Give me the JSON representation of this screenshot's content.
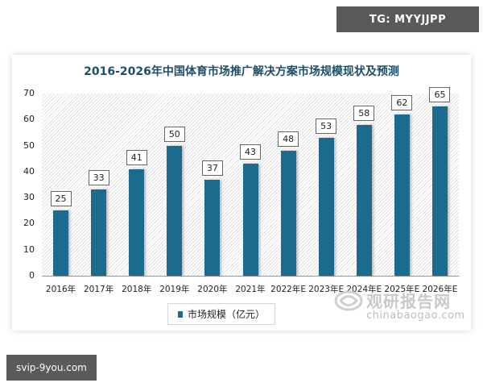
{
  "watermarks": {
    "top_right": "TG: MYYJJPP",
    "bottom_left": "svip-9you.com"
  },
  "chart_data": {
    "type": "bar",
    "title": "2016-2026年中国体育市场推广解决方案市场规模现状及预测",
    "categories": [
      "2016年",
      "2017年",
      "2018年",
      "2019年",
      "2020年",
      "2021年",
      "2022年E",
      "2023年E",
      "2024年E",
      "2025年E",
      "2026年E"
    ],
    "series": [
      {
        "name": "市场规模（亿元）",
        "values": [
          25,
          33,
          41,
          50,
          37,
          43,
          48,
          53,
          58,
          62,
          65
        ],
        "color": "#1c6a8c"
      }
    ],
    "xlabel": "",
    "ylabel": "",
    "ylim": [
      0,
      70
    ],
    "yticks": [
      0,
      10,
      20,
      30,
      40,
      50,
      60,
      70
    ],
    "grid": false,
    "legend_position": "bottom",
    "data_labels": true
  },
  "legend": {
    "label": "市场规模（亿元）"
  },
  "brand": {
    "cn": "观研报告网",
    "en": "chinabaogao.com"
  }
}
